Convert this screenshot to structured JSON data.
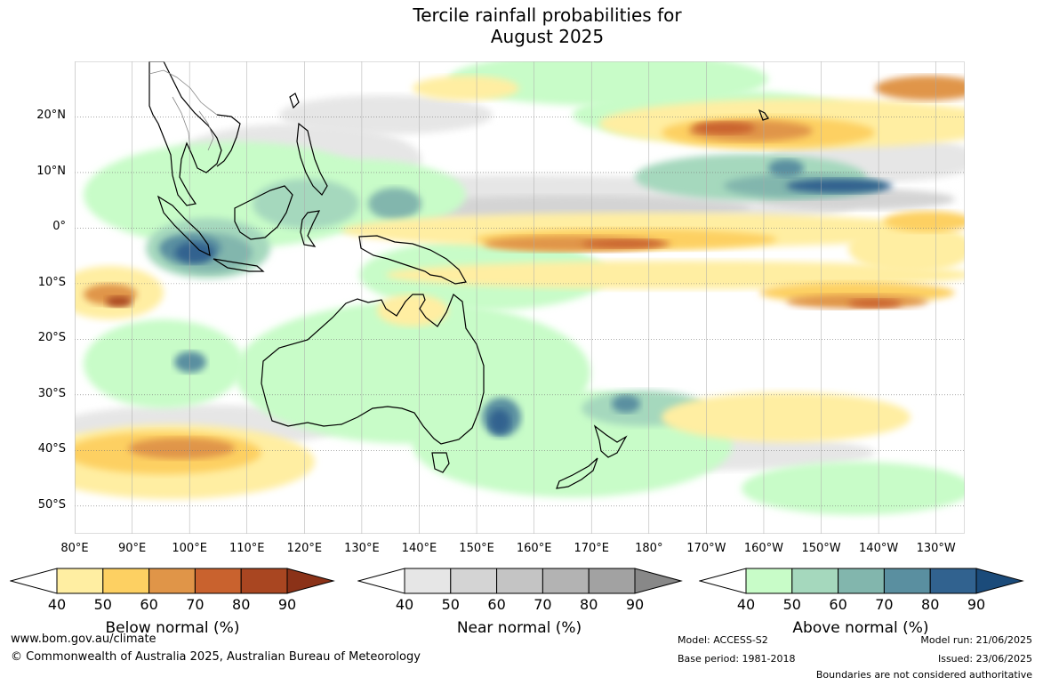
{
  "title_line1": "Tercile rainfall probabilities for",
  "title_line2": "August 2025",
  "map": {
    "lat_labels": [
      "20°N",
      "10°N",
      "0°",
      "10°S",
      "20°S",
      "30°S",
      "40°S",
      "50°S"
    ],
    "lon_labels": [
      "80°E",
      "90°E",
      "100°E",
      "110°E",
      "120°E",
      "130°E",
      "140°E",
      "150°E",
      "160°E",
      "170°E",
      "180°",
      "170°W",
      "160°W",
      "150°W",
      "140°W",
      "130°W"
    ],
    "lon_range": [
      80,
      235
    ],
    "lat_range": [
      -55,
      30
    ],
    "colors": {
      "below": [
        "#ffeea2",
        "#fdd062",
        "#e09548",
        "#c9622e",
        "#a94621",
        "#8b3218"
      ],
      "near": [
        "#e6e6e6",
        "#d4d4d4",
        "#c4c4c4",
        "#b3b3b3",
        "#a2a2a2",
        "#888888"
      ],
      "above": [
        "#c8fcc8",
        "#a5d8bd",
        "#82b6ad",
        "#5a8fa0",
        "#31628f",
        "#1b4b7a"
      ]
    }
  },
  "colorbars": [
    {
      "title": "Below normal (%)",
      "ticks": [
        "40",
        "50",
        "60",
        "70",
        "80",
        "90"
      ]
    },
    {
      "title": "Near normal (%)",
      "ticks": [
        "40",
        "50",
        "60",
        "70",
        "80",
        "90"
      ]
    },
    {
      "title": "Above normal (%)",
      "ticks": [
        "40",
        "50",
        "60",
        "70",
        "80",
        "90"
      ]
    }
  ],
  "footer": {
    "website": "www.bom.gov.au/climate",
    "copyright": "© Commonwealth of Australia 2025, Australian Bureau of Meteorology",
    "model": "Model: ACCESS-S2",
    "base_period": "Base period: 1981-2018",
    "model_run": "Model run: 21/06/2025",
    "issued": "Issued: 23/06/2025",
    "disclaimer": "Boundaries are not considered authoritative"
  }
}
